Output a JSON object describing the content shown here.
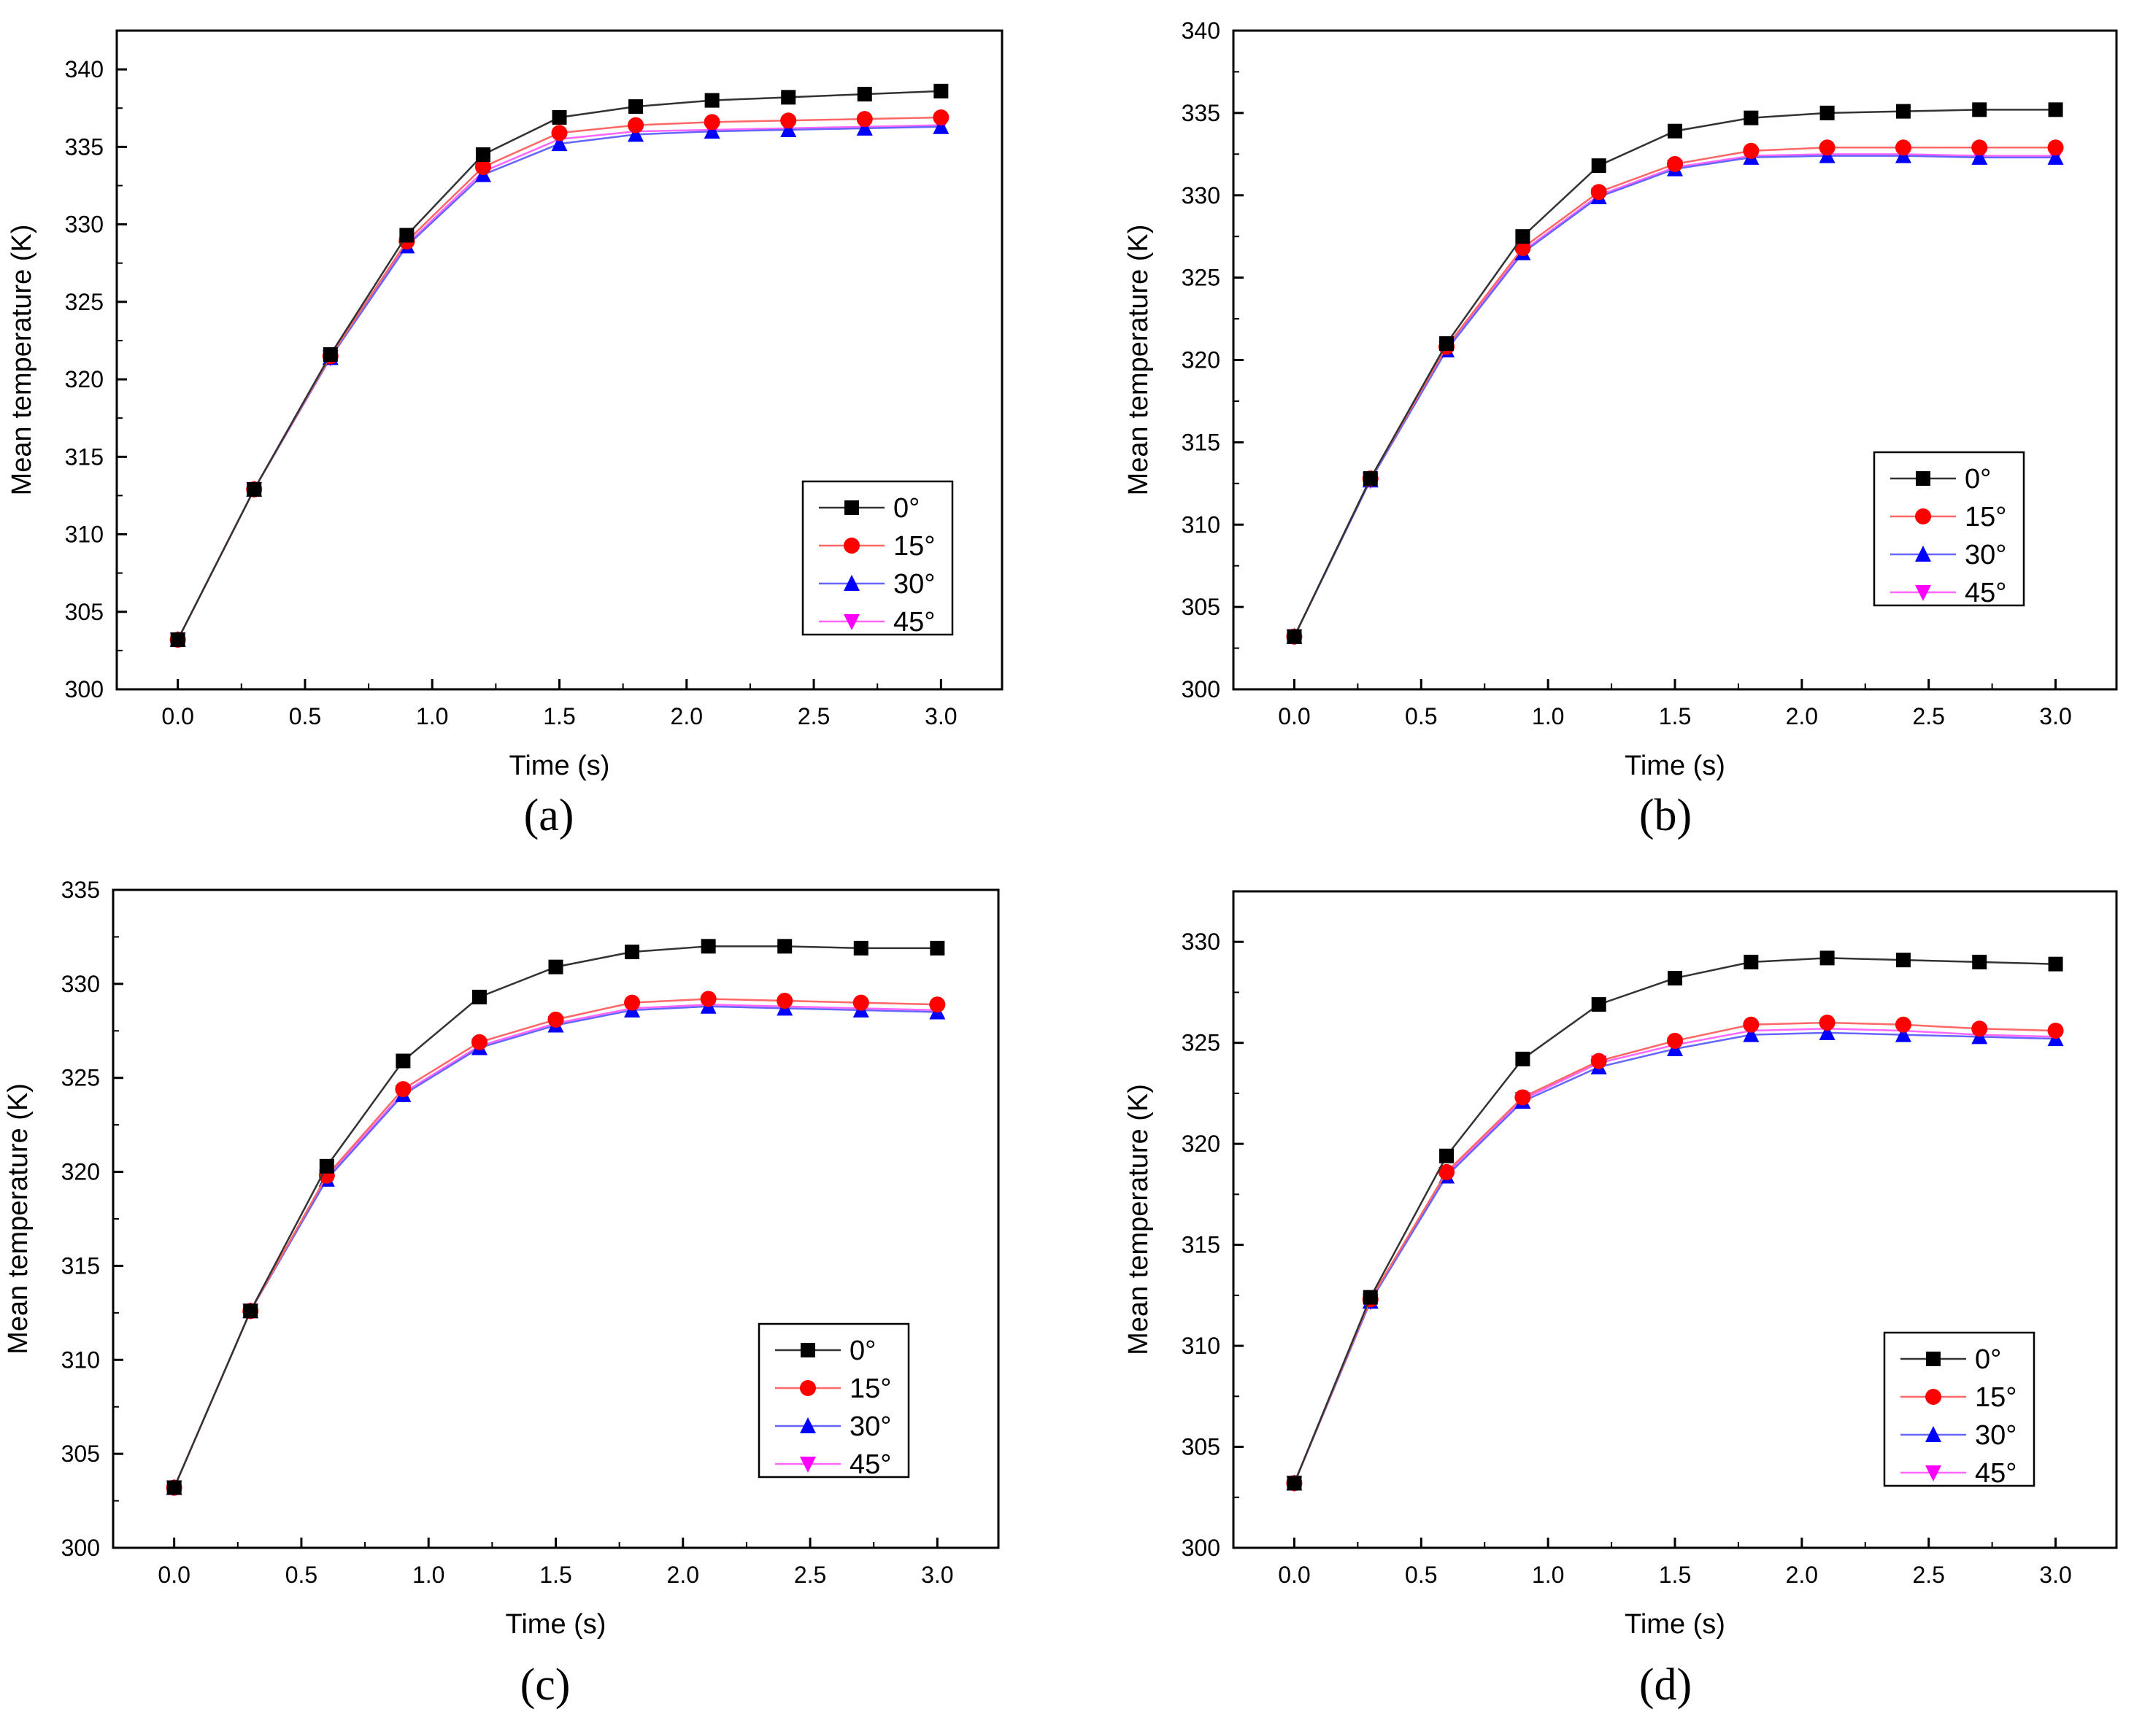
{
  "chart_data": [
    {
      "type": "line",
      "caption": "(a)",
      "xlabel": "Time (s)",
      "ylabel": "Mean temperature (K)",
      "xlim": [
        -0.24,
        3.24
      ],
      "ylim": [
        300,
        342.5
      ],
      "xticks": [
        "0.0",
        "0.5",
        "1.0",
        "1.5",
        "2.0",
        "2.5",
        "3.0"
      ],
      "yticks": [
        "300",
        "305",
        "310",
        "315",
        "320",
        "325",
        "330",
        "335",
        "340"
      ],
      "x": [
        0,
        0.3,
        0.6,
        0.9,
        1.2,
        1.5,
        1.8,
        2.1,
        2.4,
        2.7,
        3.0
      ],
      "legend_position": "lower-right",
      "series": [
        {
          "name": "0°",
          "values": [
            303.2,
            312.9,
            321.6,
            329.3,
            334.5,
            336.9,
            337.6,
            338.0,
            338.2,
            338.4,
            338.6
          ]
        },
        {
          "name": "15°",
          "values": [
            303.2,
            312.9,
            321.5,
            328.9,
            333.7,
            335.9,
            336.4,
            336.6,
            336.7,
            336.8,
            336.9
          ]
        },
        {
          "name": "30°",
          "values": [
            303.2,
            312.9,
            321.4,
            328.6,
            333.2,
            335.2,
            335.8,
            336.0,
            336.1,
            336.2,
            336.3
          ]
        },
        {
          "name": "45°",
          "values": [
            303.2,
            312.9,
            321.4,
            328.7,
            333.4,
            335.5,
            336.0,
            336.1,
            336.2,
            336.3,
            336.4
          ]
        }
      ]
    },
    {
      "type": "line",
      "caption": "(b)",
      "xlabel": "Time (s)",
      "ylabel": "Mean temperature (K)",
      "xlim": [
        -0.24,
        3.24
      ],
      "ylim": [
        300,
        340
      ],
      "xticks": [
        "0.0",
        "0.5",
        "1.0",
        "1.5",
        "2.0",
        "2.5",
        "3.0"
      ],
      "yticks": [
        "300",
        "305",
        "310",
        "315",
        "320",
        "325",
        "330",
        "335",
        "340"
      ],
      "x": [
        0,
        0.3,
        0.6,
        0.9,
        1.2,
        1.5,
        1.8,
        2.1,
        2.4,
        2.7,
        3.0
      ],
      "legend_position": "lower-right",
      "series": [
        {
          "name": "0°",
          "values": [
            303.2,
            312.8,
            321.0,
            327.5,
            331.8,
            333.9,
            334.7,
            335.0,
            335.1,
            335.2,
            335.2
          ]
        },
        {
          "name": "15°",
          "values": [
            303.2,
            312.8,
            320.8,
            326.8,
            330.2,
            331.9,
            332.7,
            332.9,
            332.9,
            332.9,
            332.9
          ]
        },
        {
          "name": "30°",
          "values": [
            303.2,
            312.7,
            320.6,
            326.5,
            329.9,
            331.6,
            332.3,
            332.4,
            332.4,
            332.3,
            332.3
          ]
        },
        {
          "name": "45°",
          "values": [
            303.2,
            312.7,
            320.7,
            326.6,
            330.0,
            331.7,
            332.4,
            332.5,
            332.5,
            332.4,
            332.4
          ]
        }
      ]
    },
    {
      "type": "line",
      "caption": "(c)",
      "xlabel": "Time (s)",
      "ylabel": "Mean temperature (K)",
      "xlim": [
        -0.24,
        3.24
      ],
      "ylim": [
        300,
        335
      ],
      "xticks": [
        "0.0",
        "0.5",
        "1.0",
        "1.5",
        "2.0",
        "2.5",
        "3.0"
      ],
      "yticks": [
        "300",
        "305",
        "310",
        "315",
        "320",
        "325",
        "330",
        "335"
      ],
      "x": [
        0,
        0.3,
        0.6,
        0.9,
        1.2,
        1.5,
        1.8,
        2.1,
        2.4,
        2.7,
        3.0
      ],
      "legend_position": "lower-right",
      "series": [
        {
          "name": "0°",
          "values": [
            303.2,
            312.6,
            320.3,
            325.9,
            329.3,
            330.9,
            331.7,
            332.0,
            332.0,
            331.9,
            331.9
          ]
        },
        {
          "name": "15°",
          "values": [
            303.2,
            312.6,
            319.8,
            324.4,
            326.9,
            328.1,
            329.0,
            329.2,
            329.1,
            329.0,
            328.9
          ]
        },
        {
          "name": "30°",
          "values": [
            303.2,
            312.6,
            319.6,
            324.1,
            326.6,
            327.8,
            328.6,
            328.8,
            328.7,
            328.6,
            328.5
          ]
        },
        {
          "name": "45°",
          "values": [
            303.2,
            312.6,
            319.7,
            324.2,
            326.7,
            327.9,
            328.7,
            328.9,
            328.8,
            328.7,
            328.6
          ]
        }
      ]
    },
    {
      "type": "line",
      "caption": "(d)",
      "xlabel": "Time (s)",
      "ylabel": "Mean temperature (K)",
      "xlim": [
        -0.24,
        3.24
      ],
      "ylim": [
        300,
        332.5
      ],
      "xticks": [
        "0.0",
        "0.5",
        "1.0",
        "1.5",
        "2.0",
        "2.5",
        "3.0"
      ],
      "yticks": [
        "300",
        "305",
        "310",
        "315",
        "320",
        "325",
        "330"
      ],
      "x": [
        0,
        0.3,
        0.6,
        0.9,
        1.2,
        1.5,
        1.8,
        2.1,
        2.4,
        2.7,
        3.0
      ],
      "legend_position": "lower-right",
      "series": [
        {
          "name": "0°",
          "values": [
            303.2,
            312.4,
            319.4,
            324.2,
            326.9,
            328.2,
            329.0,
            329.2,
            329.1,
            329.0,
            328.9
          ]
        },
        {
          "name": "15°",
          "values": [
            303.2,
            312.3,
            318.6,
            322.3,
            324.1,
            325.1,
            325.9,
            326.0,
            325.9,
            325.7,
            325.6
          ]
        },
        {
          "name": "30°",
          "values": [
            303.2,
            312.2,
            318.4,
            322.1,
            323.8,
            324.7,
            325.4,
            325.5,
            325.4,
            325.3,
            325.2
          ]
        },
        {
          "name": "45°",
          "values": [
            303.2,
            312.2,
            318.5,
            322.2,
            324.0,
            324.9,
            325.6,
            325.7,
            325.6,
            325.4,
            325.3
          ]
        }
      ]
    }
  ],
  "style": {
    "series_colors": [
      "#000000",
      "#ff0000",
      "#0000ff",
      "#ff00ff"
    ],
    "line_colors": [
      "#333333",
      "#ff6666",
      "#6666ff",
      "#ff66ff"
    ],
    "markers": [
      "square",
      "circle",
      "triangle-up",
      "triangle-down"
    ]
  }
}
